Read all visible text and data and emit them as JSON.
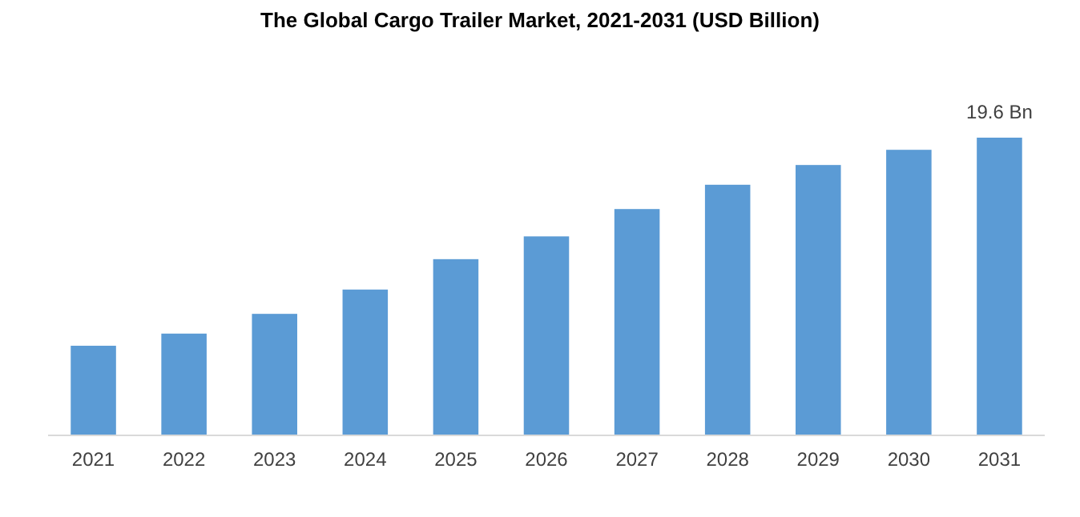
{
  "chart_data": {
    "type": "bar",
    "title": "The Global Cargo Trailer Market, 2021-2031 (USD Billion)",
    "categories": [
      "2021",
      "2022",
      "2023",
      "2024",
      "2025",
      "2026",
      "2027",
      "2028",
      "2029",
      "2030",
      "2031"
    ],
    "values": [
      5.9,
      6.7,
      8.0,
      9.6,
      11.6,
      13.1,
      14.9,
      16.5,
      17.8,
      18.8,
      19.6
    ],
    "value_labels": [
      null,
      null,
      null,
      null,
      null,
      null,
      null,
      null,
      null,
      null,
      "19.6 Bn"
    ],
    "color": "#5b9bd5",
    "grid": false
  }
}
